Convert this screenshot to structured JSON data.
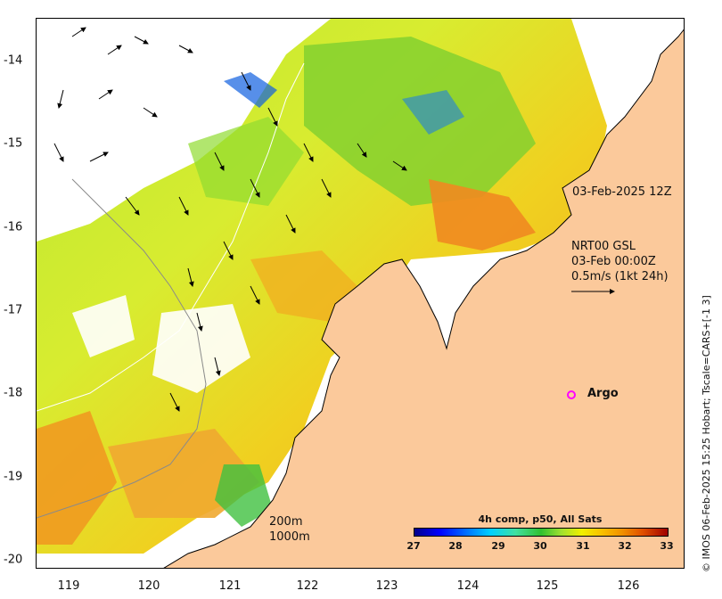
{
  "map": {
    "x_ticks": [
      "119",
      "120",
      "121",
      "122",
      "123",
      "124",
      "125",
      "126"
    ],
    "y_ticks": [
      "-14",
      "-15",
      "-16",
      "-17",
      "-18",
      "-19",
      "-20"
    ],
    "x_range": [
      118.6,
      126.7
    ],
    "y_range": [
      -20.1,
      -13.5
    ],
    "annotations": {
      "timestamp": "03-Feb-2025 12Z",
      "product_line1": "NRT00 GSL",
      "product_line2": "03-Feb 00:00Z",
      "product_line3": "0.5m/s (1kt 24h)"
    },
    "isobaths": {
      "shallow": "200m",
      "deep": "1000m"
    },
    "argo": {
      "label": "Argo",
      "lon": 125.3,
      "lat": -18.0,
      "color": "#ff00ff"
    },
    "colorbar": {
      "title": "4h comp, p50, All Sats",
      "ticks": [
        "27",
        "28",
        "29",
        "30",
        "31",
        "32",
        "33"
      ],
      "range": [
        27,
        33
      ]
    },
    "credit": "© IMOS 06-Feb-2025 15:25 Hobart; Tscale=CARS+[-1 3]",
    "colors": {
      "land": "#fbc99b",
      "coast": "#000000",
      "argo": "#ff00ff"
    }
  }
}
